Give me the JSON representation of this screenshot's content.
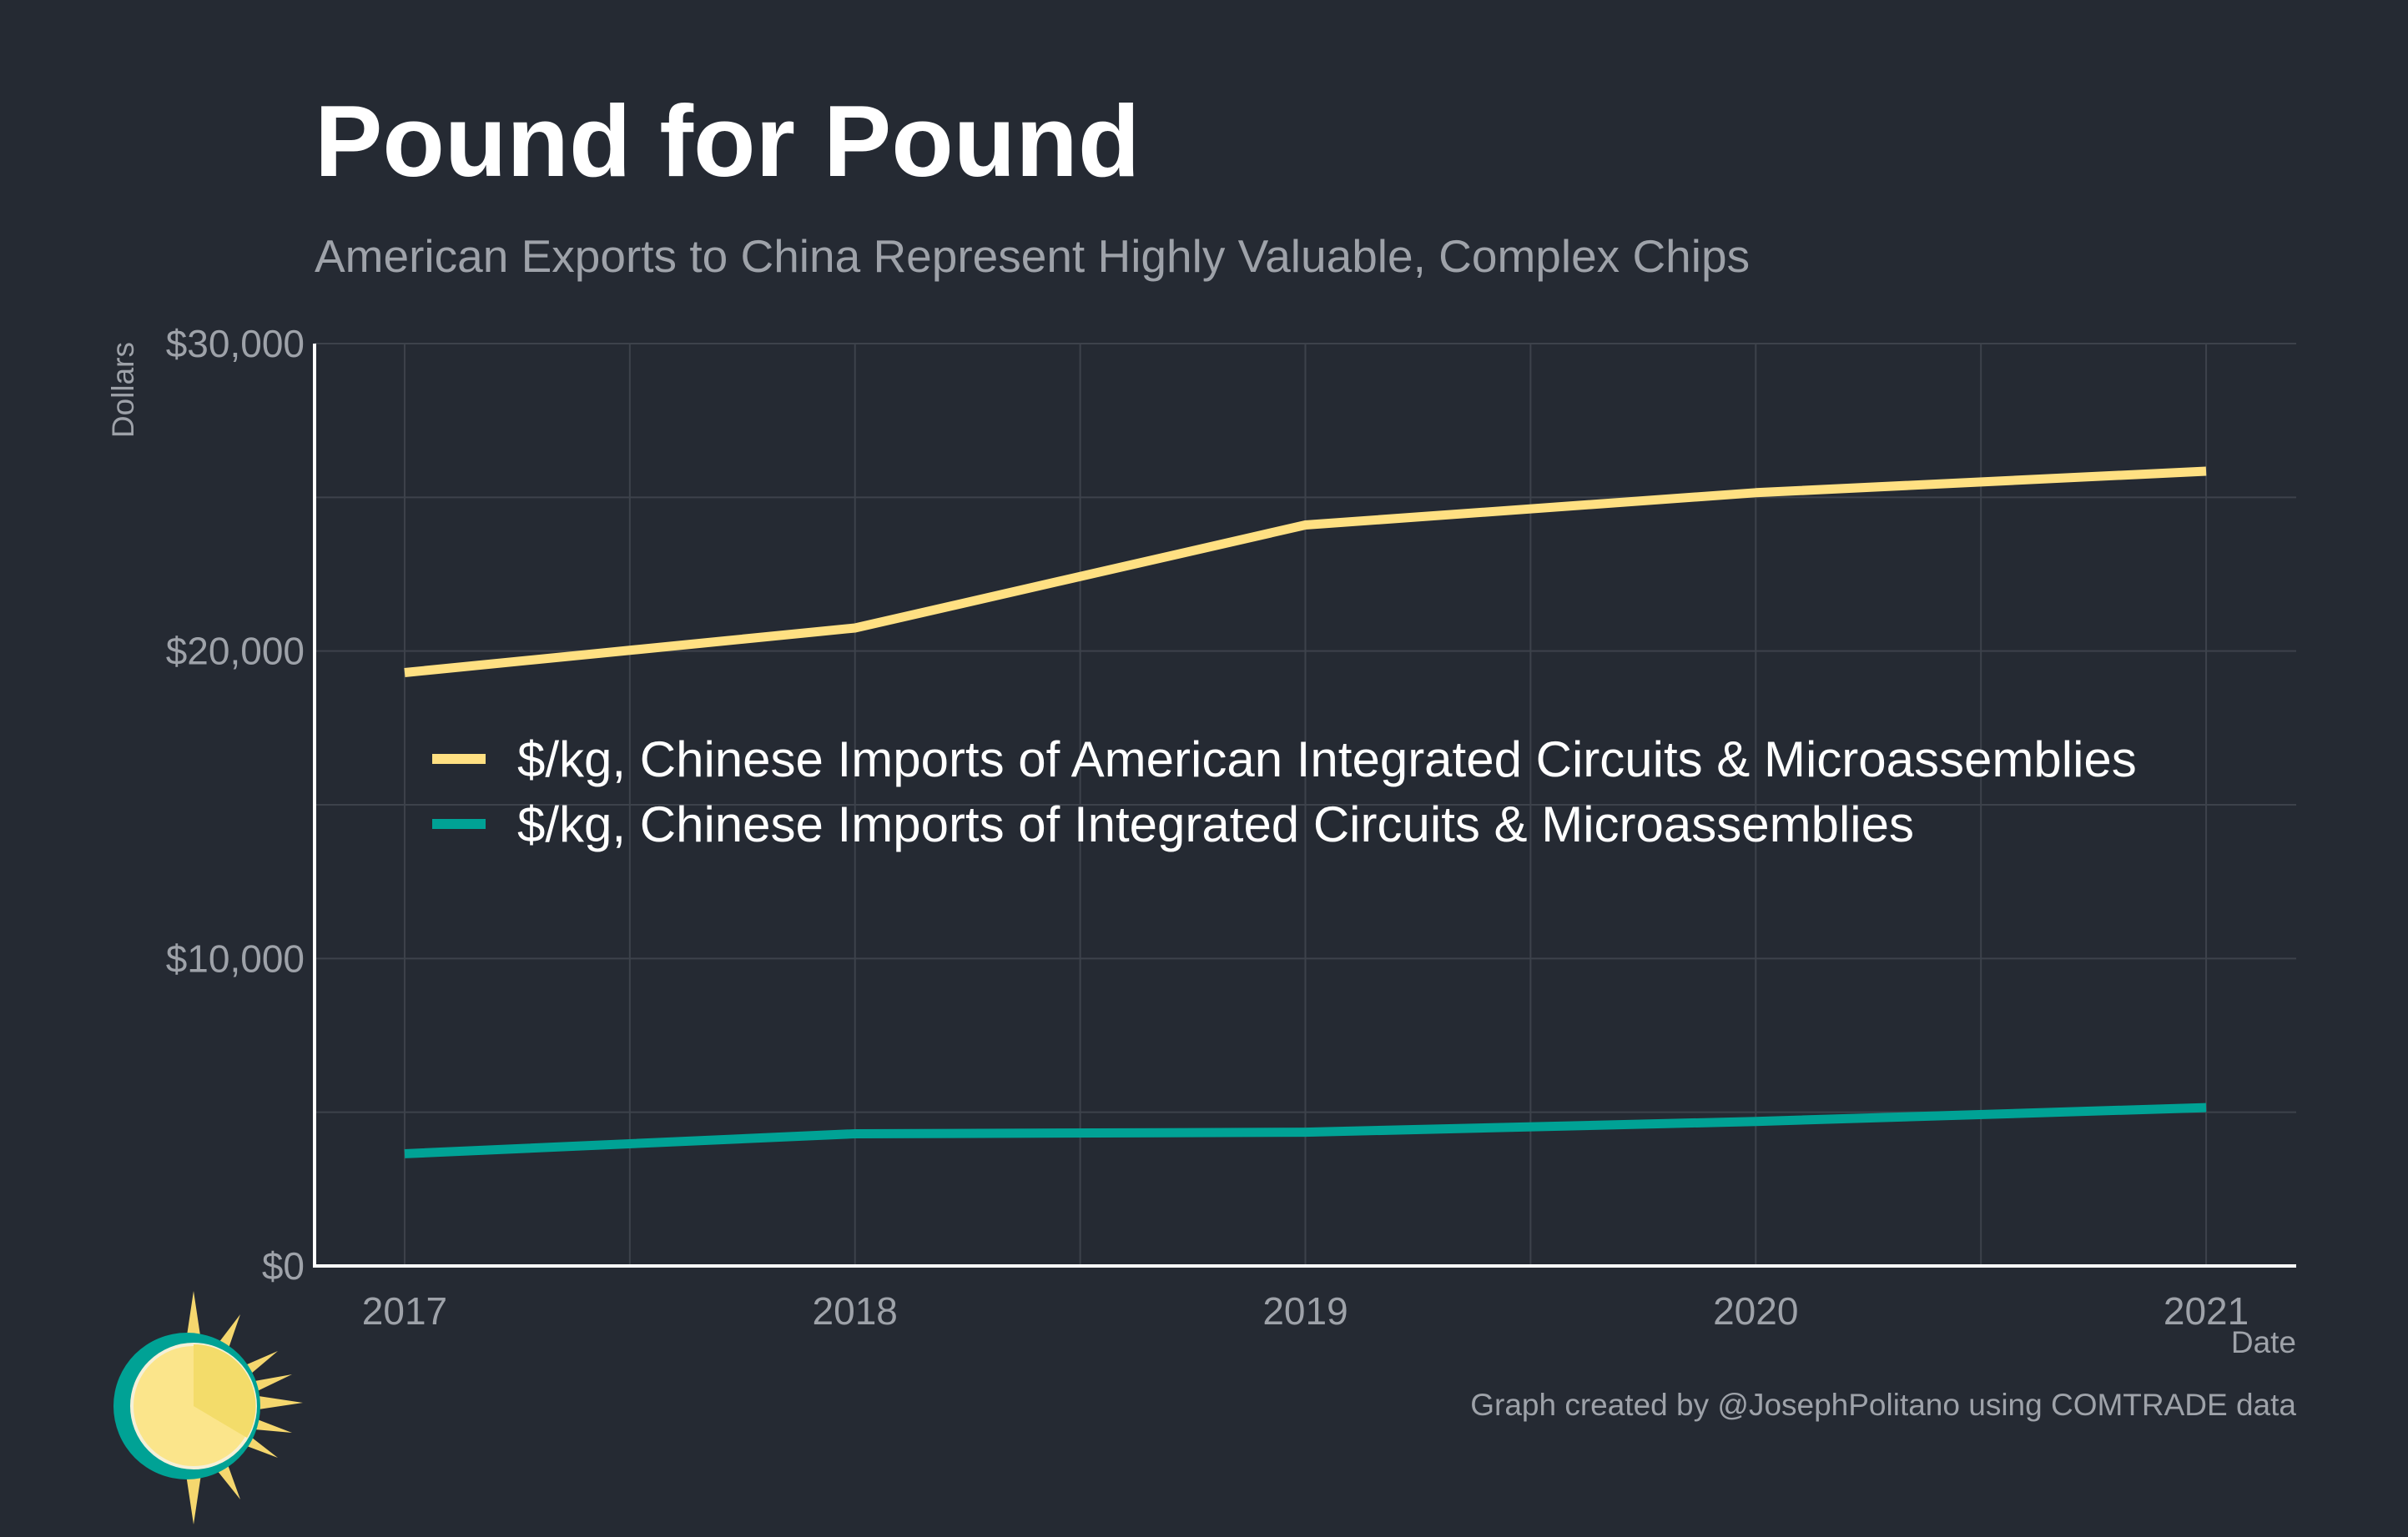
{
  "chart_data": {
    "type": "line",
    "title": "Pound for Pound",
    "subtitle": "American Exports to China Represent Highly Valuable, Complex Chips",
    "xlabel": "Date",
    "ylabel": "Dollars",
    "x": [
      2017,
      2018,
      2019,
      2020,
      2021
    ],
    "x_tick_labels": [
      "2017",
      "2018",
      "2019",
      "2020",
      "2021"
    ],
    "xlim": [
      2016.8,
      2021.2
    ],
    "ylim": [
      0,
      30000
    ],
    "y_ticks": [
      0,
      10000,
      20000,
      30000
    ],
    "y_tick_labels": [
      "$0",
      "$10,000",
      "$20,000",
      "$30,000"
    ],
    "grid": true,
    "legend_position": "center",
    "series": [
      {
        "name": "$/kg, Chinese Imports of American Integrated Circuits & Microassemblies",
        "color": "#ffe082",
        "values": [
          19300,
          20750,
          24100,
          25150,
          25850
        ]
      },
      {
        "name": "$/kg, Chinese Imports of Integrated Circuits & Microassemblies",
        "color": "#00a295",
        "values": [
          3650,
          4300,
          4350,
          4700,
          5150
        ]
      }
    ],
    "caption": "Graph created by @JosephPolitano using COMTRADE data"
  },
  "logo": {
    "icon": "sun-icon",
    "colors": {
      "rays": "#f5d76e",
      "face": "#fbe58b",
      "ring": "#00a295"
    }
  },
  "theme": {
    "background": "#252a33",
    "grid": "#3d424b",
    "axis": "#ffffff",
    "muted_text": "#9ea2a9"
  }
}
